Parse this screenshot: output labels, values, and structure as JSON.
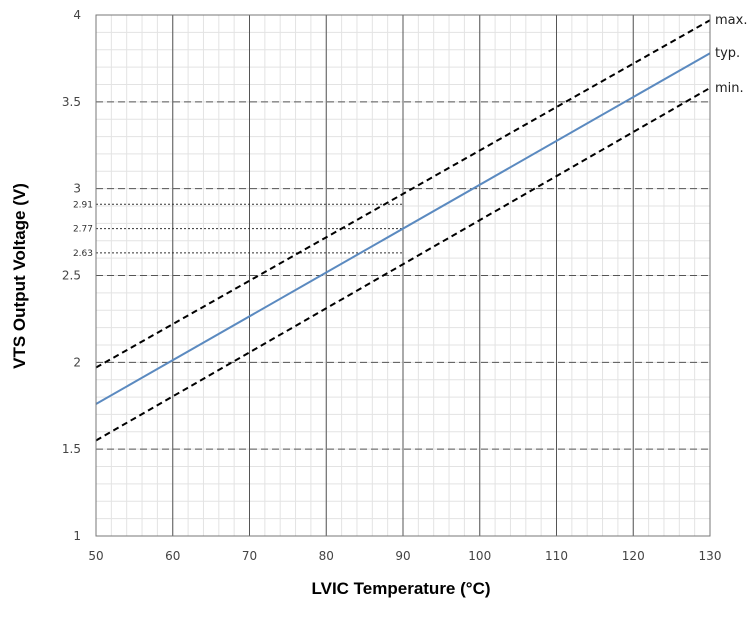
{
  "chart_data": {
    "type": "line",
    "title": "",
    "xlabel": "LVIC Temperature (°C)",
    "ylabel": "VTS Output Voltage (V)",
    "xlim": [
      50,
      130
    ],
    "ylim": [
      1,
      4
    ],
    "x_ticks": [
      "50",
      "60",
      "70",
      "80",
      "90",
      "100",
      "110",
      "120",
      "130"
    ],
    "y_ticks": [
      "1",
      "1.5",
      "2",
      "2.5",
      "3",
      "3.5",
      "4"
    ],
    "grid": true,
    "series": [
      {
        "name": "max.",
        "style": "dashed",
        "color": "#000000",
        "x": [
          50,
          130
        ],
        "y": [
          1.97,
          3.97
        ]
      },
      {
        "name": "typ.",
        "style": "solid",
        "color": "#5b8ac0",
        "x": [
          50,
          130
        ],
        "y": [
          1.76,
          3.78
        ]
      },
      {
        "name": "min.",
        "style": "dashed",
        "color": "#000000",
        "x": [
          50,
          130
        ],
        "y": [
          1.55,
          3.58
        ]
      }
    ],
    "reference_lines": [
      {
        "label": "2.91",
        "x": 90,
        "y": 2.91
      },
      {
        "label": "2.77",
        "x": 90,
        "y": 2.77
      },
      {
        "label": "2.63",
        "x": 90,
        "y": 2.63
      }
    ]
  }
}
